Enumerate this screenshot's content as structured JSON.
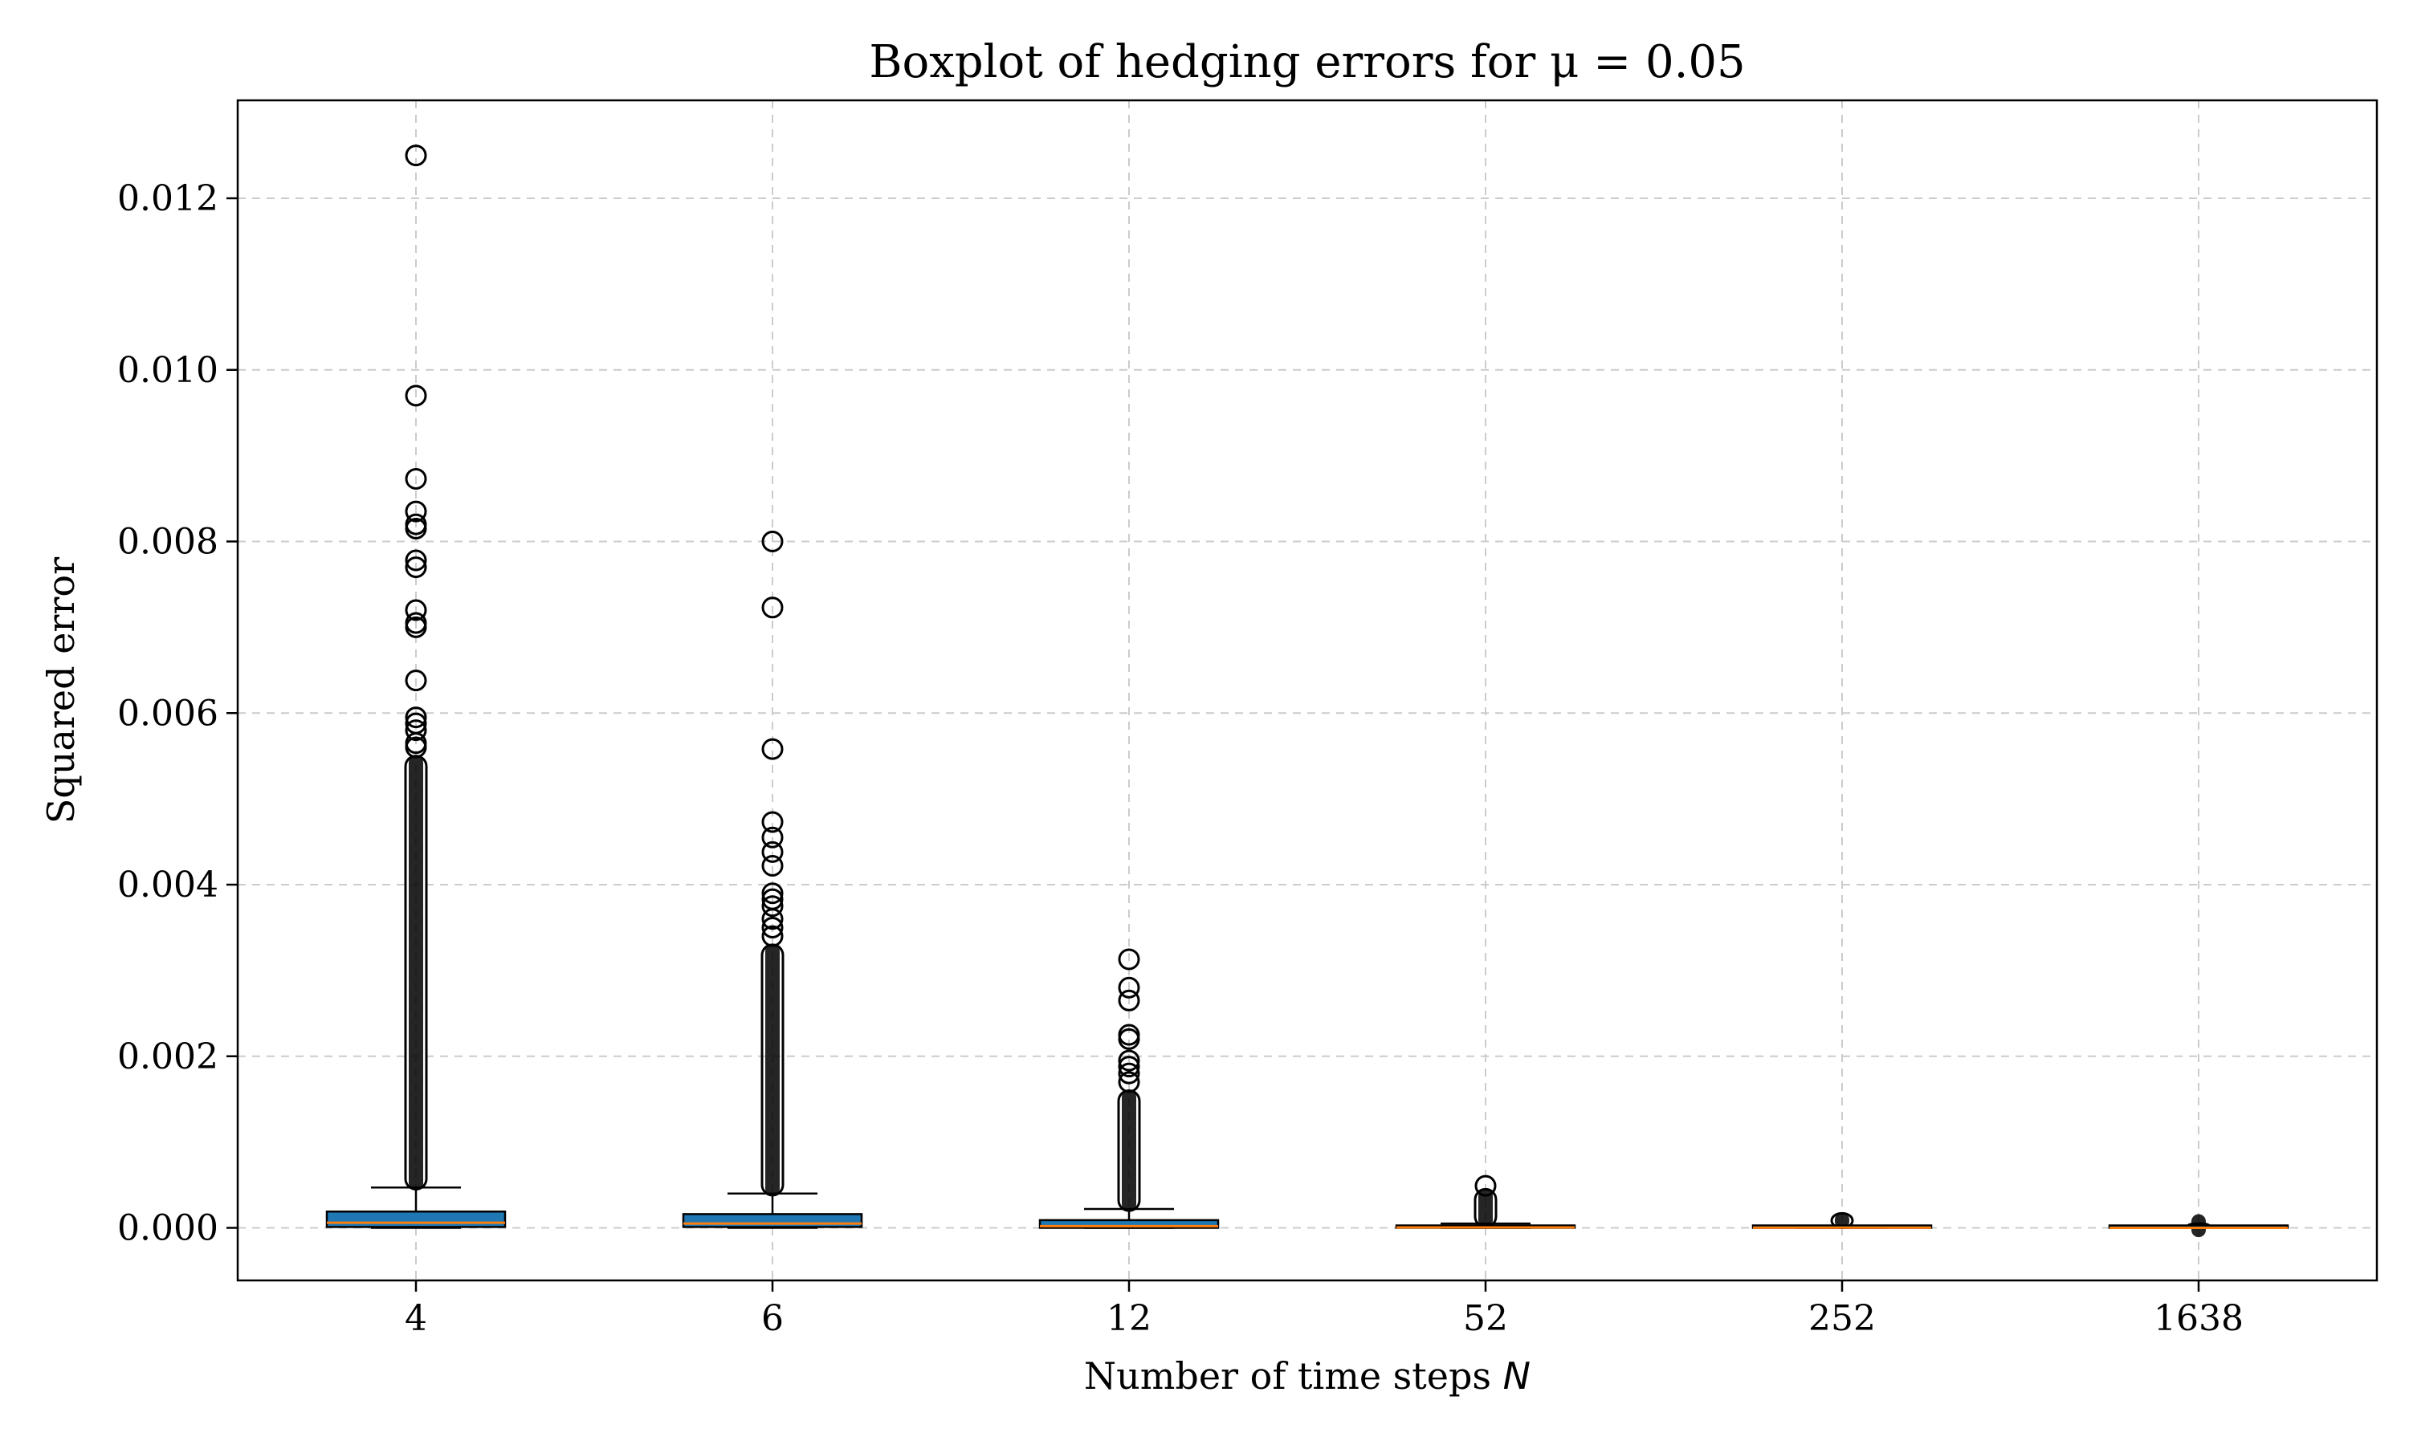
{
  "chart_data": {
    "type": "boxplot",
    "title": "Boxplot of hedging errors for μ = 0.05",
    "xlabel": "Number of time steps N",
    "xlabel_parts": {
      "text": "Number of time steps ",
      "symbol": "N"
    },
    "ylabel": "Squared error",
    "categories": [
      "4",
      "6",
      "12",
      "52",
      "252",
      "1638"
    ],
    "ylim": [
      -0.0006,
      0.0132
    ],
    "yticks": [
      0.0,
      0.002,
      0.004,
      0.006,
      0.008,
      0.01,
      0.012
    ],
    "ytick_labels": [
      "0.000",
      "0.002",
      "0.004",
      "0.006",
      "0.008",
      "0.010",
      "0.012"
    ],
    "grid": true,
    "box_color": "#1f77b4",
    "median_color": "#ff7f0e",
    "boxes": [
      {
        "category": "4",
        "whislo": 0.0,
        "q1": 1e-05,
        "median": 6e-05,
        "q3": 0.00019,
        "whishi": 0.00047,
        "flier_min": 0.00045,
        "flier_dense_max": 0.0055,
        "fliers": [
          0.0125,
          0.0097,
          0.00873,
          0.00835,
          0.0082,
          0.00815,
          0.00778,
          0.0077,
          0.0072,
          0.00705,
          0.007,
          0.00638,
          0.00595,
          0.00588,
          0.0058,
          0.00565,
          0.0056
        ]
      },
      {
        "category": "6",
        "whislo": 0.0,
        "q1": 1e-05,
        "median": 5e-05,
        "q3": 0.00016,
        "whishi": 0.0004,
        "flier_min": 0.00038,
        "flier_dense_max": 0.0033,
        "fliers": [
          0.008,
          0.00723,
          0.00558,
          0.00473,
          0.00455,
          0.00438,
          0.00422,
          0.0039,
          0.00383,
          0.00375,
          0.0036,
          0.0035,
          0.0034
        ]
      },
      {
        "category": "12",
        "whislo": 0.0,
        "q1": 0.0,
        "median": 2e-05,
        "q3": 9e-05,
        "whishi": 0.00022,
        "flier_min": 0.0002,
        "flier_dense_max": 0.0016,
        "fliers": [
          0.00313,
          0.0028,
          0.00265,
          0.00225,
          0.0022,
          0.00195,
          0.00188,
          0.0018,
          0.0017
        ]
      },
      {
        "category": "52",
        "whislo": 0.0,
        "q1": 0.0,
        "median": 5e-06,
        "q3": 2e-05,
        "whishi": 5e-05,
        "flier_min": 1e-05,
        "flier_dense_max": 0.00045,
        "fliers": [
          0.00049
        ]
      },
      {
        "category": "252",
        "whislo": 0.0,
        "q1": 0.0,
        "median": 2e-06,
        "q3": 6e-06,
        "whishi": 1.5e-05,
        "flier_min": 0.0,
        "flier_dense_max": 0.00017,
        "fliers": []
      },
      {
        "category": "1638",
        "whislo": 0.0,
        "q1": 0.0,
        "median": 0.0,
        "q3": 1e-06,
        "whishi": 2e-06,
        "flier_min": 0.0,
        "flier_dense_max": 5e-05,
        "fliers": []
      }
    ]
  }
}
